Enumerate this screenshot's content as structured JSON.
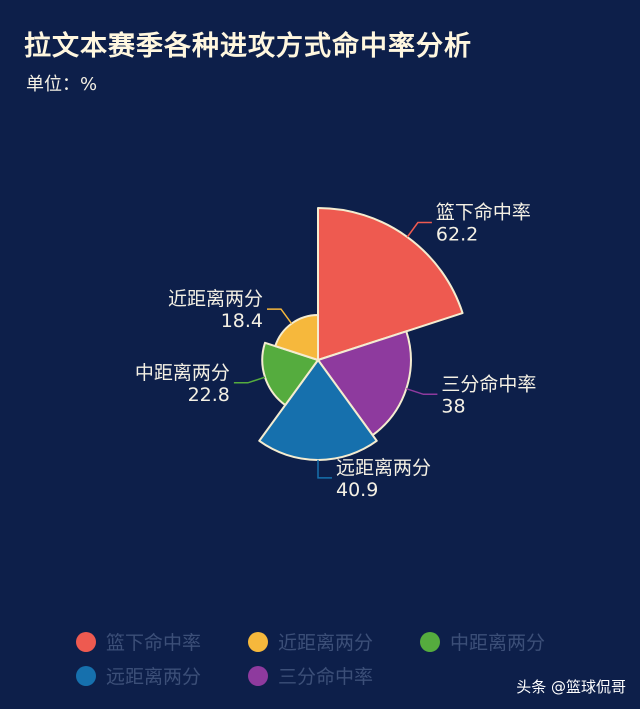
{
  "title": "拉文本赛季各种进攻方式命中率分析",
  "subtitle": "单位：%",
  "watermark": "头条 @篮球侃哥",
  "chart_data": {
    "type": "pie",
    "variant": "rose",
    "title": "拉文本赛季各种进攻方式命中率分析",
    "unit_label": "单位：%",
    "slices": [
      {
        "label": "篮下命中率",
        "value": 62.2,
        "color": "#ee5a50"
      },
      {
        "label": "三分命中率",
        "value": 38,
        "color": "#8e3a9e"
      },
      {
        "label": "远距离两分",
        "value": 40.9,
        "color": "#1670ad"
      },
      {
        "label": "中距离两分",
        "value": 22.8,
        "color": "#55ac3e"
      },
      {
        "label": "近距离两分",
        "value": 18.4,
        "color": "#f6b83c"
      }
    ],
    "legend_order": [
      "篮下命中率",
      "近距离两分",
      "中距离两分",
      "远距离两分",
      "三分命中率"
    ],
    "legend_position": "bottom"
  }
}
